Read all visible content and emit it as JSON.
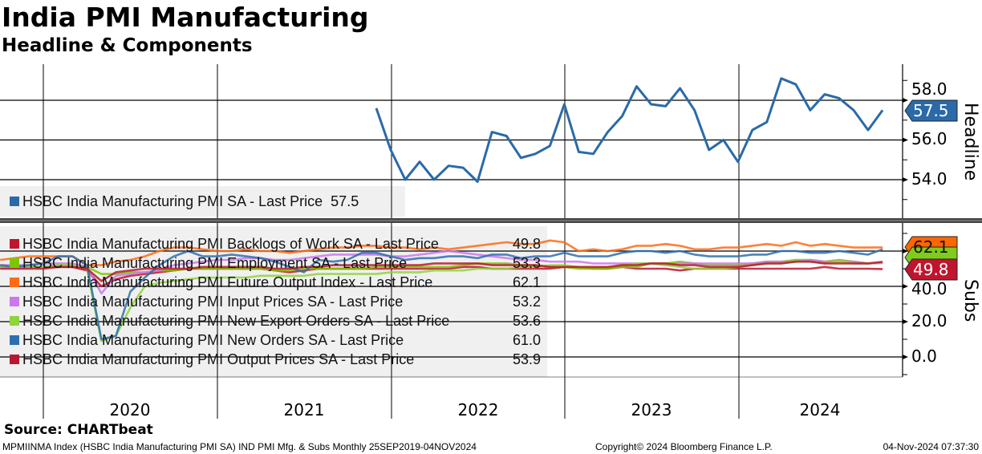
{
  "header": {
    "title": "India PMI Manufacturing",
    "subtitle": "Headline & Components"
  },
  "footer": {
    "source": "Source: CHARTbeat",
    "meta": "MPMIINMA Index (HSBC India Manufacturing PMI SA) IND PMI Mfg. & Subs  Monthly 25SEP2019-04NOV2024",
    "copyright": "Copyright© 2024 Bloomberg Finance L.P.",
    "timestamp": "04-Nov-2024 07:37:30"
  },
  "chart_data": [
    {
      "type": "line",
      "panel": "Headline",
      "ylabel": "Headline",
      "ylim": [
        51.8,
        59.8
      ],
      "yticks": [
        "54.0",
        "56.0",
        "58.0"
      ],
      "grid": true,
      "start_month": "2021-11",
      "series": [
        {
          "name": "HSBC India Manufacturing PMI SA - Last Price",
          "last": "57.5",
          "color": "#2a6aa8",
          "values": [
            57.6,
            55.5,
            54.0,
            54.9,
            54.0,
            54.7,
            54.6,
            53.9,
            56.4,
            56.2,
            55.1,
            55.3,
            55.7,
            57.8,
            55.4,
            55.3,
            56.4,
            57.2,
            58.7,
            57.8,
            57.7,
            58.6,
            57.5,
            55.5,
            56.0,
            54.9,
            56.5,
            56.9,
            59.1,
            58.8,
            57.5,
            58.3,
            58.1,
            57.5,
            56.5,
            57.5
          ]
        }
      ]
    },
    {
      "type": "line",
      "panel": "Subs",
      "ylabel": "Subs",
      "ylim": [
        -8,
        76
      ],
      "yticks": [
        "0.0",
        "20.0",
        "40.0"
      ],
      "grid": true,
      "start_month": "2019-09",
      "xticks": [
        "2020",
        "2021",
        "2022",
        "2023",
        "2024"
      ],
      "series": [
        {
          "name": "HSBC India Manufacturing PMI Backlogs of Work SA - Last Price",
          "last": "49.8",
          "color": "#c0152f",
          "values": [
            51,
            51,
            51,
            51,
            51,
            51,
            49,
            40,
            44,
            46,
            47,
            48,
            49,
            50,
            50,
            50,
            50,
            50,
            50,
            49,
            48,
            49,
            50,
            50,
            50,
            50,
            50,
            50,
            50,
            50,
            50,
            50,
            51,
            51,
            50,
            50,
            50,
            50,
            50,
            51,
            51,
            50,
            50,
            51,
            50,
            50,
            50,
            49,
            50,
            50,
            50,
            50,
            50,
            50,
            50,
            50,
            50,
            51,
            50,
            50,
            50,
            49.8
          ]
        },
        {
          "name": "HSBC India Manufacturing PMI Employment SA - Last Price",
          "last": "53.3",
          "color": "#78c800",
          "values": [
            51,
            51,
            51,
            51,
            52,
            52,
            51,
            47,
            47,
            48,
            48,
            49,
            49,
            50,
            50,
            50,
            50,
            50,
            50,
            49,
            49,
            50,
            50,
            50,
            50,
            50,
            51,
            51,
            51,
            51,
            51,
            51,
            52,
            53,
            53,
            53,
            52,
            52,
            51,
            51,
            50,
            50,
            50,
            51,
            51,
            53,
            53,
            54,
            53,
            52,
            52,
            52,
            53,
            54,
            54,
            55,
            55,
            54,
            55,
            54,
            53,
            53.3
          ]
        },
        {
          "name": "HSBC India Manufacturing PMI Future Output Index - Last Price",
          "last": "62.1",
          "color": "#ff6a13",
          "values": [
            55,
            56,
            57,
            57,
            57,
            57,
            52,
            52,
            54,
            55,
            57,
            60,
            62,
            62,
            61,
            60,
            60,
            61,
            60,
            60,
            59,
            60,
            61,
            62,
            62,
            63,
            63,
            62,
            62,
            61,
            62,
            61,
            62,
            63,
            64,
            65,
            64,
            64,
            66,
            65,
            60,
            61,
            60,
            61,
            63,
            63,
            64,
            63,
            61,
            61,
            62,
            62,
            63,
            64,
            63,
            65,
            63,
            64,
            63,
            62,
            62,
            62.1
          ]
        },
        {
          "name": "HSBC India Manufacturing PMI Input Prices SA - Last Price",
          "last": "53.2",
          "color": "#cc77ee",
          "values": [
            52,
            52,
            52,
            53,
            53,
            53,
            51,
            36,
            46,
            47,
            48,
            49,
            52,
            53,
            54,
            55,
            55,
            56,
            56,
            55,
            55,
            56,
            57,
            58,
            58,
            58,
            58,
            57,
            57,
            58,
            59,
            60,
            59,
            58,
            57,
            56,
            55,
            55,
            54,
            54,
            54,
            53,
            53,
            53,
            53,
            53,
            52,
            53,
            53,
            53,
            53,
            53,
            53,
            54,
            54,
            54,
            55,
            54,
            54,
            54,
            53,
            53.2
          ]
        },
        {
          "name": "HSBC India Manufacturing PMI New Export Orders SA - Last Price",
          "last": "53.6",
          "color": "#8fd43c",
          "values": [
            51,
            51,
            51,
            51,
            52,
            52,
            50,
            9,
            12,
            28,
            40,
            42,
            43,
            44,
            45,
            45,
            45,
            45,
            46,
            46,
            46,
            46,
            47,
            47,
            47,
            47,
            47,
            48,
            48,
            48,
            49,
            49,
            49,
            50,
            50,
            50,
            51,
            51,
            52,
            52,
            51,
            51,
            51,
            52,
            53,
            53,
            52,
            51,
            50,
            50,
            50,
            51,
            52,
            53,
            53,
            54,
            54,
            53,
            54,
            53,
            53,
            53.6
          ]
        },
        {
          "name": "HSBC India Manufacturing PMI New Orders SA - Last Price",
          "last": "61.0",
          "color": "#2e6fae",
          "values": [
            52,
            51,
            52,
            53,
            57,
            57,
            52,
            10,
            12,
            37,
            45,
            52,
            57,
            60,
            57,
            57,
            58,
            57,
            56,
            54,
            51,
            48,
            55,
            54,
            55,
            59,
            59,
            57,
            55,
            56,
            56,
            57,
            57,
            56,
            58,
            58,
            56,
            57,
            57,
            59,
            57,
            57,
            57,
            59,
            60,
            60,
            59,
            60,
            58,
            57,
            57,
            57,
            58,
            58,
            60,
            60,
            59,
            59,
            60,
            59,
            58,
            61.0
          ]
        },
        {
          "name": "HSBC India Manufacturing PMI Output Prices SA - Last Price",
          "last": "53.9",
          "color": "#b8182e",
          "values": [
            50,
            50,
            50,
            50,
            51,
            51,
            50,
            43,
            48,
            49,
            50,
            50,
            50,
            50,
            51,
            51,
            51,
            51,
            51,
            50,
            50,
            51,
            51,
            52,
            52,
            52,
            52,
            52,
            52,
            52,
            53,
            53,
            53,
            53,
            52,
            52,
            52,
            52,
            51,
            51,
            51,
            51,
            51,
            52,
            52,
            53,
            53,
            52,
            52,
            51,
            51,
            51,
            52,
            53,
            53,
            54,
            54,
            53,
            53,
            53,
            53,
            53.9
          ]
        }
      ]
    }
  ],
  "tags": {
    "headline": "57.5",
    "subs": [
      "62.1",
      "53.6",
      "49.8"
    ]
  }
}
